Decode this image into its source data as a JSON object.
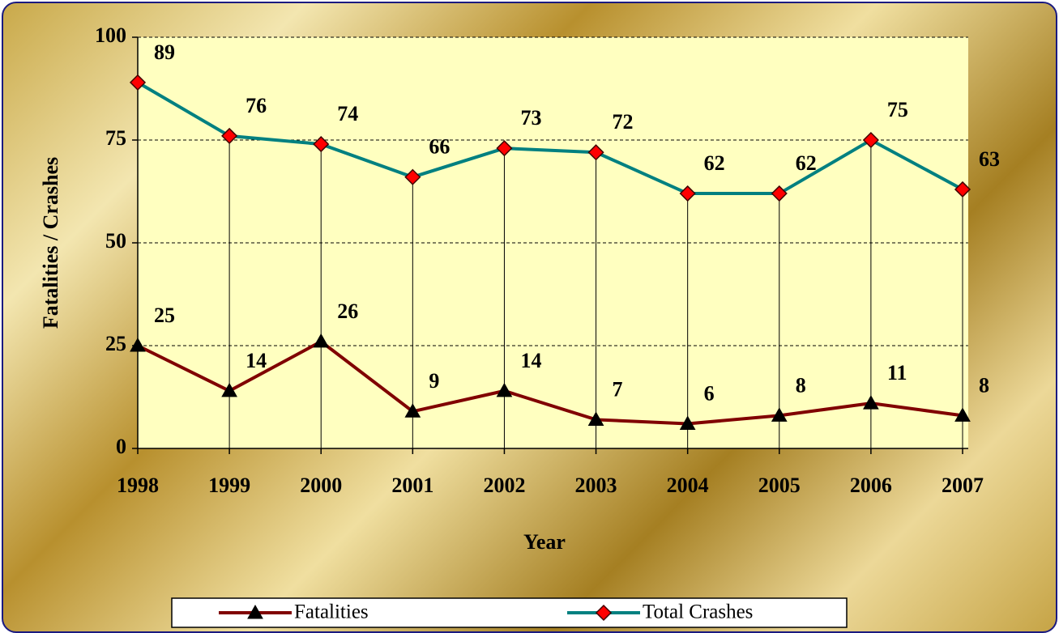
{
  "chart_data": {
    "type": "line",
    "x_label": "Year",
    "y_label": "Fatalities / Crashes",
    "categories": [
      "1998",
      "1999",
      "2000",
      "2001",
      "2002",
      "2003",
      "2004",
      "2005",
      "2006",
      "2007"
    ],
    "series": [
      {
        "name": "Fatalities",
        "color": "#800000",
        "marker": "triangle",
        "marker_color": "#000000",
        "values": [
          25,
          14,
          26,
          9,
          14,
          7,
          6,
          8,
          11,
          8
        ]
      },
      {
        "name": "Total Crashes",
        "color": "#008080",
        "marker": "diamond",
        "marker_color": "#ff0000",
        "values": [
          89,
          76,
          74,
          66,
          73,
          72,
          62,
          62,
          75,
          63
        ]
      }
    ],
    "ylim": [
      0,
      100
    ],
    "yticks": [
      0,
      25,
      50,
      75,
      100
    ],
    "grid": true,
    "drop_lines": true,
    "legend": "bottom"
  }
}
